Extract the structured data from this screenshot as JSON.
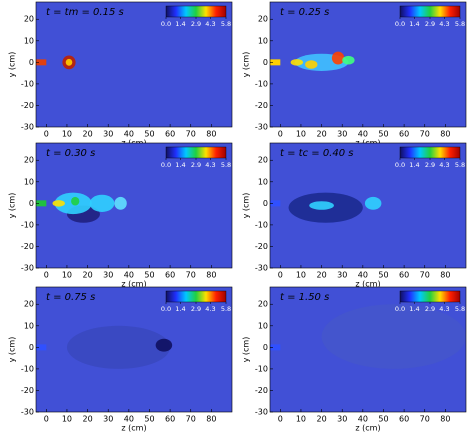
{
  "chart_data": [
    {
      "type": "image",
      "title": "t = tm = 0.15 s",
      "xlabel": "z (cm)",
      "ylabel": "y (cm)",
      "xlim": [
        -5,
        90
      ],
      "ylim": [
        -30,
        28
      ],
      "xticks": [
        0,
        10,
        20,
        30,
        40,
        50,
        60,
        70,
        80
      ],
      "yticks": [
        -30,
        -20,
        -10,
        0,
        10,
        20
      ],
      "nozzle_color": "#e04010",
      "colorbar": {
        "lim": [
          0,
          5.8
        ],
        "ticks": [
          {
            "value": 0,
            "label": "0.0"
          },
          {
            "value": 1.4,
            "label": "1.4"
          },
          {
            "value": 2.9,
            "label": "2.9"
          },
          {
            "value": 4.3,
            "label": "4.3"
          },
          {
            "value": 5.8,
            "label": "5.8"
          }
        ],
        "colors": [
          "#101060",
          "#2030ff",
          "#00c8ff",
          "#20d040",
          "#ffe000",
          "#ff2000",
          "#a00000"
        ]
      }
    },
    {
      "type": "image",
      "title": "t = 0.25 s",
      "xlabel": "z (cm)",
      "ylabel": "y (cm)",
      "xlim": [
        -5,
        90
      ],
      "ylim": [
        -30,
        28
      ],
      "xticks": [
        0,
        10,
        20,
        30,
        40,
        50,
        60,
        70,
        80
      ],
      "yticks": [
        -30,
        -20,
        -10,
        0,
        10,
        20
      ],
      "nozzle_color": "#ffd000",
      "colorbar": {
        "lim": [
          0,
          5.8
        ],
        "ticks": [
          {
            "value": 0,
            "label": "0.0"
          },
          {
            "value": 1.4,
            "label": "1.4"
          },
          {
            "value": 2.9,
            "label": "2.9"
          },
          {
            "value": 4.3,
            "label": "4.3"
          },
          {
            "value": 5.8,
            "label": "5.8"
          }
        ],
        "colors": [
          "#101060",
          "#2030ff",
          "#00c8ff",
          "#20d040",
          "#ffe000",
          "#ff2000",
          "#a00000"
        ]
      }
    },
    {
      "type": "image",
      "title": "t = 0.30 s",
      "xlabel": "z (cm)",
      "ylabel": "y (cm)",
      "xlim": [
        -5,
        90
      ],
      "ylim": [
        -30,
        28
      ],
      "xticks": [
        0,
        10,
        20,
        30,
        40,
        50,
        60,
        70,
        80
      ],
      "yticks": [
        -30,
        -20,
        -10,
        0,
        10,
        20
      ],
      "nozzle_color": "#20c040",
      "colorbar": {
        "lim": [
          0,
          5.8
        ],
        "ticks": [
          {
            "value": 0,
            "label": "0.0"
          },
          {
            "value": 1.4,
            "label": "1.4"
          },
          {
            "value": 2.9,
            "label": "2.9"
          },
          {
            "value": 4.3,
            "label": "4.3"
          },
          {
            "value": 5.8,
            "label": "5.8"
          }
        ],
        "colors": [
          "#101060",
          "#2030ff",
          "#00c8ff",
          "#20d040",
          "#ffe000",
          "#ff2000",
          "#a00000"
        ]
      }
    },
    {
      "type": "image",
      "title": "t = tc = 0.40 s",
      "xlabel": "z (cm)",
      "ylabel": "y (cm)",
      "xlim": [
        -5,
        90
      ],
      "ylim": [
        -30,
        28
      ],
      "xticks": [
        0,
        10,
        20,
        30,
        40,
        50,
        60,
        70,
        80
      ],
      "yticks": [
        -30,
        -20,
        -10,
        0,
        10,
        20
      ],
      "nozzle_color": "#3050ff",
      "colorbar": {
        "lim": [
          0,
          5.8
        ],
        "ticks": [
          {
            "value": 0,
            "label": "0.0"
          },
          {
            "value": 1.4,
            "label": "1.4"
          },
          {
            "value": 2.9,
            "label": "2.9"
          },
          {
            "value": 4.3,
            "label": "4.3"
          },
          {
            "value": 5.8,
            "label": "5.8"
          }
        ],
        "colors": [
          "#101060",
          "#2030ff",
          "#00c8ff",
          "#20d040",
          "#ffe000",
          "#ff2000",
          "#a00000"
        ]
      }
    },
    {
      "type": "image",
      "title": "t = 0.75 s",
      "xlabel": "z (cm)",
      "ylabel": "y (cm)",
      "xlim": [
        -5,
        90
      ],
      "ylim": [
        -30,
        28
      ],
      "xticks": [
        0,
        10,
        20,
        30,
        40,
        50,
        60,
        70,
        80
      ],
      "yticks": [
        -30,
        -20,
        -10,
        0,
        10,
        20
      ],
      "nozzle_color": "#3050ff",
      "colorbar": {
        "lim": [
          0,
          5.8
        ],
        "ticks": [
          {
            "value": 0,
            "label": "0.0"
          },
          {
            "value": 1.4,
            "label": "1.4"
          },
          {
            "value": 2.9,
            "label": "2.9"
          },
          {
            "value": 4.3,
            "label": "4.3"
          },
          {
            "value": 5.8,
            "label": "5.8"
          }
        ],
        "colors": [
          "#101060",
          "#2030ff",
          "#00c8ff",
          "#20d040",
          "#ffe000",
          "#ff2000",
          "#a00000"
        ]
      }
    },
    {
      "type": "image",
      "title": "t = 1.50 s",
      "xlabel": "z (cm)",
      "ylabel": "y (cm)",
      "xlim": [
        -5,
        90
      ],
      "ylim": [
        -30,
        28
      ],
      "xticks": [
        0,
        10,
        20,
        30,
        40,
        50,
        60,
        70,
        80
      ],
      "yticks": [
        -30,
        -20,
        -10,
        0,
        10,
        20
      ],
      "nozzle_color": "#3050ff",
      "colorbar": {
        "lim": [
          0,
          5.8
        ],
        "ticks": [
          {
            "value": 0,
            "label": "0.0"
          },
          {
            "value": 1.4,
            "label": "1.4"
          },
          {
            "value": 2.9,
            "label": "2.9"
          },
          {
            "value": 4.3,
            "label": "4.3"
          },
          {
            "value": 5.8,
            "label": "5.8"
          }
        ],
        "colors": [
          "#101060",
          "#2030ff",
          "#00c8ff",
          "#20d040",
          "#ffe000",
          "#ff2000",
          "#a00000"
        ]
      }
    }
  ]
}
